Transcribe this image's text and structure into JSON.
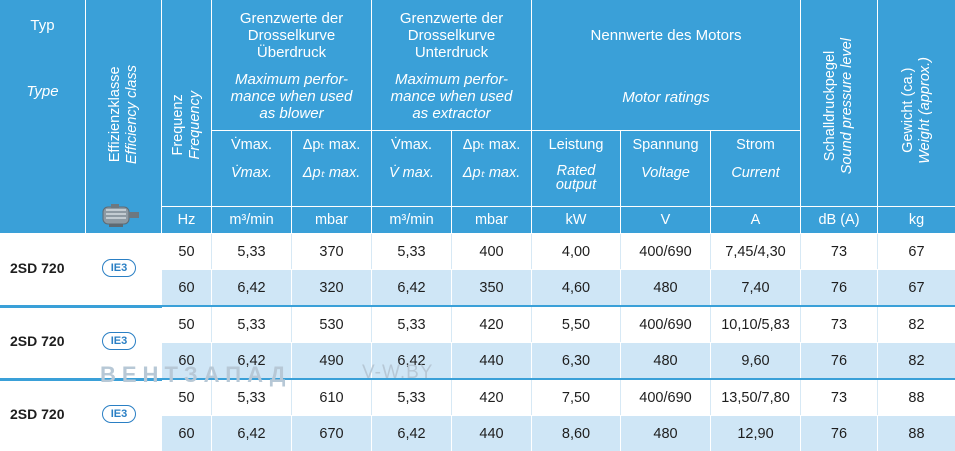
{
  "header": {
    "typ_de": "Typ",
    "typ_en": "Type",
    "efficiency_de": "Effizienzklasse",
    "efficiency_en": "Efficiency class",
    "frequency_de": "Frequenz",
    "frequency_en": "Frequency",
    "blower_de_1": "Grenzwerte der",
    "blower_de_2": "Drosselkurve",
    "blower_de_3": "Überdruck",
    "blower_en_1": "Maximum perfor-",
    "blower_en_2": "mance when used",
    "blower_en_3": "as blower",
    "extractor_de_1": "Grenzwerte der",
    "extractor_de_2": "Drosselkurve",
    "extractor_de_3": "Unterdruck",
    "extractor_en_1": "Maximum perfor-",
    "extractor_en_2": "mance when used",
    "extractor_en_3": "as extractor",
    "motor_de": "Nennwerte des Motors",
    "motor_en": "Motor ratings",
    "sound_de": "Schalldruckpegel",
    "sound_en": "Sound pressure level",
    "weight_de": "Gewicht (ca.)",
    "weight_en": "Weight (approx.)",
    "vmax_de": "V̇max.",
    "vmax_en": "V̇max.",
    "dp_de": "Δpₜ max.",
    "dp_en": "Δpₜ max.",
    "vmax2_de": "V̇max.",
    "vmax2_en": "V̇ max.",
    "dp2_de": "Δpₜ max.",
    "dp2_en": "Δpₜ max.",
    "leistung_de": "Leistung",
    "leistung_en_1": "Rated",
    "leistung_en_2": "output",
    "spannung_de": "Spannung",
    "spannung_en": "Voltage",
    "strom_de": "Strom",
    "strom_en": "Current"
  },
  "units": [
    "Hz",
    "m³/min",
    "mbar",
    "m³/min",
    "mbar",
    "kW",
    "V",
    "A",
    "dB (A)",
    "kg"
  ],
  "motor_icon": "motor-icon",
  "groups": [
    {
      "type": "2SD 720",
      "class": "IE3",
      "rows": [
        [
          "50",
          "5,33",
          "370",
          "5,33",
          "400",
          "4,00",
          "400/690",
          "7,45/4,30",
          "73",
          "67"
        ],
        [
          "60",
          "6,42",
          "320",
          "6,42",
          "350",
          "4,60",
          "480",
          "7,40",
          "76",
          "67"
        ]
      ]
    },
    {
      "type": "2SD 720",
      "class": "IE3",
      "rows": [
        [
          "50",
          "5,33",
          "530",
          "5,33",
          "420",
          "5,50",
          "400/690",
          "10,10/5,83",
          "73",
          "82"
        ],
        [
          "60",
          "6,42",
          "490",
          "6,42",
          "440",
          "6,30",
          "480",
          "9,60",
          "76",
          "82"
        ]
      ]
    },
    {
      "type": "2SD 720",
      "class": "IE3",
      "rows": [
        [
          "50",
          "5,33",
          "610",
          "5,33",
          "420",
          "7,50",
          "400/690",
          "13,50/7,80",
          "73",
          "88"
        ],
        [
          "60",
          "6,42",
          "670",
          "6,42",
          "440",
          "8,60",
          "480",
          "12,90",
          "76",
          "88"
        ]
      ]
    }
  ],
  "watermark": {
    "brand": "ВЕНТЗАПАД",
    "site": "V-W.BY"
  },
  "colors": {
    "header": "#3aa0d8",
    "row_alt": "#cfe6f6",
    "badge": "#2a7fc4"
  }
}
